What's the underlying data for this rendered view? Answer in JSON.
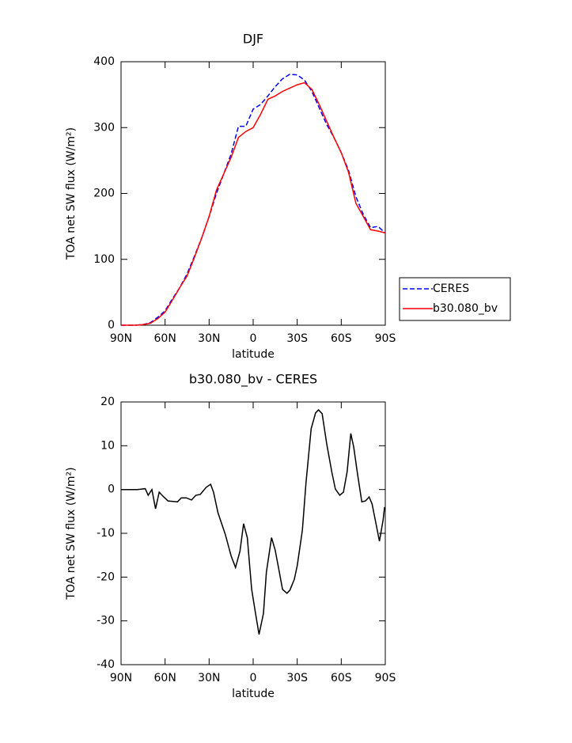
{
  "chart_data": [
    {
      "type": "line",
      "title": "DJF",
      "x_label": "latitude",
      "y_label": "TOA net SW flux (W/m²)",
      "xlim": [
        90,
        -90
      ],
      "ylim": [
        0,
        400
      ],
      "xticks": [
        {
          "value": 90,
          "label": "90N"
        },
        {
          "value": 60,
          "label": "60N"
        },
        {
          "value": 30,
          "label": "30N"
        },
        0,
        {
          "value": -30,
          "label": "30S"
        },
        {
          "value": -60,
          "label": "60S"
        },
        {
          "value": -90,
          "label": "90S"
        }
      ],
      "yticks": [
        0,
        100,
        200,
        300,
        400
      ],
      "legend": "outside-right",
      "x": [
        90,
        85,
        80,
        75,
        70,
        65,
        60,
        55,
        50,
        45,
        40,
        35,
        30,
        25,
        20,
        15,
        10,
        5,
        0,
        -5,
        -10,
        -15,
        -20,
        -25,
        -30,
        -35,
        -40,
        -45,
        -50,
        -55,
        -60,
        -65,
        -70,
        -75,
        -80,
        -85,
        -90
      ],
      "series": [
        {
          "name": "CERES",
          "color": "#0000ff",
          "dash": "dashed",
          "values": [
            0,
            0,
            0,
            1,
            4,
            12,
            22,
            40,
            57,
            78,
            105,
            133,
            165,
            200,
            230,
            260,
            302,
            302,
            328,
            335,
            348,
            362,
            374,
            381,
            380,
            372,
            355,
            330,
            305,
            285,
            262,
            235,
            195,
            168,
            148,
            150,
            140
          ]
        },
        {
          "name": "b30.080_bv",
          "color": "#ff0000",
          "dash": "solid",
          "values": [
            0,
            0,
            0,
            1,
            3,
            10,
            20,
            38,
            57,
            75,
            103,
            133,
            165,
            205,
            230,
            255,
            285,
            294,
            300,
            320,
            343,
            348,
            355,
            360,
            365,
            368,
            358,
            335,
            310,
            285,
            262,
            232,
            185,
            165,
            145,
            143,
            140
          ]
        }
      ]
    },
    {
      "type": "line",
      "title": "b30.080_bv - CERES",
      "x_label": "latitude",
      "y_label": "TOA net SW flux (W/m²)",
      "xlim": [
        90,
        -90
      ],
      "ylim": [
        -40,
        20
      ],
      "xticks": [
        {
          "value": 90,
          "label": "90N"
        },
        {
          "value": 60,
          "label": "60N"
        },
        {
          "value": 30,
          "label": "30N"
        },
        0,
        {
          "value": -30,
          "label": "30S"
        },
        {
          "value": -60,
          "label": "60S"
        },
        {
          "value": -90,
          "label": "90S"
        }
      ],
      "yticks": [
        -40,
        -30,
        -20,
        -10,
        0,
        10,
        20
      ],
      "color": "#000000",
      "x": [
        90,
        79,
        73.5,
        71.5,
        69,
        66.5,
        64,
        61.5,
        58,
        51.5,
        49,
        45.5,
        42,
        39,
        36,
        32,
        29,
        27,
        24,
        19,
        15,
        12,
        9,
        6.5,
        4,
        1,
        -1.6,
        -4,
        -7,
        -9,
        -12.5,
        -15,
        -17.5,
        -20,
        -23,
        -25,
        -28,
        -30,
        -33.5,
        -36,
        -39.5,
        -42.5,
        -44.5,
        -47,
        -50,
        -53.5,
        -56,
        -59,
        -61.5,
        -64,
        -66.5,
        -68.5,
        -71,
        -74,
        -76.5,
        -79,
        -81,
        -84,
        -86,
        -88.5,
        -89.5
      ],
      "values": [
        0,
        0,
        0.2,
        -1.3,
        0,
        -4.4,
        -0.6,
        -1.5,
        -2.6,
        -2.8,
        -1.9,
        -1.9,
        -2.4,
        -1.3,
        -1.1,
        0.5,
        1.2,
        -0.6,
        -5.3,
        -10.2,
        -15.2,
        -17.8,
        -14.1,
        -7.8,
        -11,
        -22.8,
        -28.3,
        -33.1,
        -28.3,
        -18.9,
        -11,
        -13.8,
        -18.3,
        -22.8,
        -23.7,
        -23,
        -20.5,
        -17.4,
        -9.3,
        1.6,
        13.9,
        17.5,
        18.2,
        17.3,
        10.6,
        4.1,
        0.1,
        -1.3,
        -0.6,
        4.1,
        12.8,
        9.7,
        3.8,
        -2.8,
        -2.6,
        -1.7,
        -3.3,
        -8.4,
        -11.8,
        -7,
        -4
      ]
    }
  ]
}
